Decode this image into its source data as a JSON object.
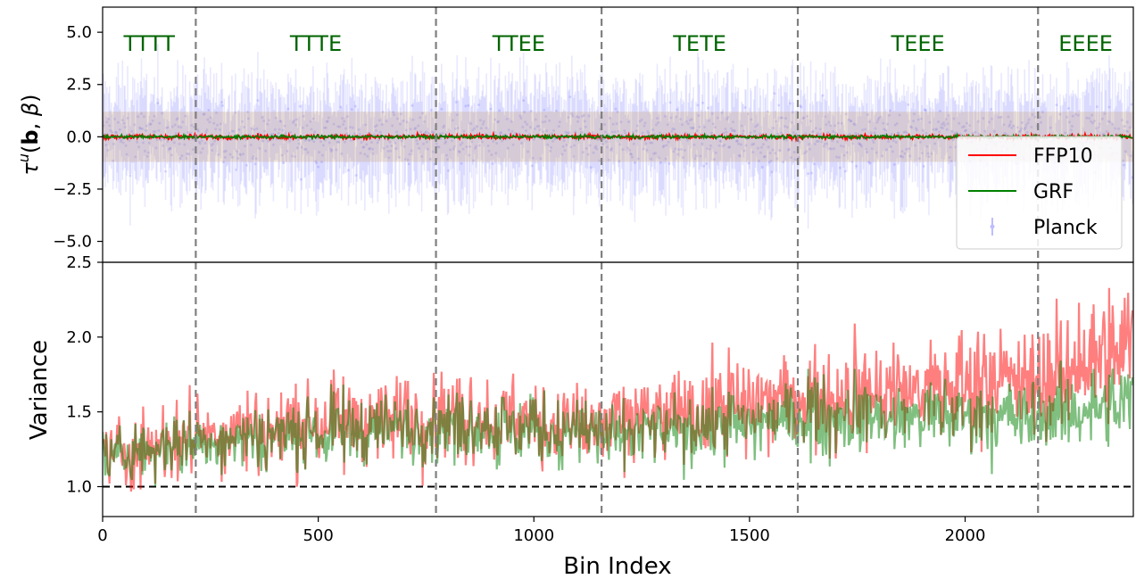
{
  "chart_data": [
    {
      "type": "line",
      "panel": "top",
      "ylabel": "τᵘ(b, β)",
      "xlim": [
        0,
        2390
      ],
      "ylim": [
        -6.0,
        6.2
      ],
      "yticks": [
        -5.0,
        -2.5,
        0.0,
        2.5,
        5.0
      ],
      "ytick_labels": [
        "−5.0",
        "−2.5",
        "0.0",
        "2.5",
        "5.0"
      ],
      "grid": false,
      "legend_position": "lower-right",
      "series": [
        {
          "name": "FFP10",
          "color": "#ff0000",
          "description": "mean near 0, band approx ±1.2"
        },
        {
          "name": "GRF",
          "color": "#008000",
          "description": "mean near 0"
        },
        {
          "name": "Planck",
          "color": "#0000ff",
          "marker": "point with error bars",
          "spread": 1.3
        }
      ],
      "band_color": "#c8a070",
      "band_halfwidth": 1.2,
      "regions": [
        {
          "label": "TTTT",
          "start": 0,
          "end": 216
        },
        {
          "label": "TTTE",
          "start": 216,
          "end": 773
        },
        {
          "label": "TTEE",
          "start": 773,
          "end": 1157
        },
        {
          "label": "TETE",
          "start": 1157,
          "end": 1612
        },
        {
          "label": "TEEE",
          "start": 1612,
          "end": 2169
        },
        {
          "label": "EEEE",
          "start": 2169,
          "end": 2390
        }
      ],
      "region_label_color": "#006400"
    },
    {
      "type": "line",
      "panel": "bottom",
      "xlabel": "Bin Index",
      "ylabel": "Variance",
      "xlim": [
        0,
        2390
      ],
      "ylim": [
        0.8,
        2.5
      ],
      "xticks": [
        0,
        500,
        1000,
        1500,
        2000
      ],
      "xtick_labels": [
        "0",
        "500",
        "1000",
        "1500",
        "2000"
      ],
      "yticks": [
        1.0,
        1.5,
        2.0,
        2.5
      ],
      "ytick_labels": [
        "1.0",
        "1.5",
        "2.0",
        "2.5"
      ],
      "reference_line": {
        "y": 1.0,
        "style": "dashed",
        "color": "#000000"
      },
      "grid": false,
      "series": [
        {
          "name": "FFP10",
          "color": "#ff0000",
          "trend_x": [
            0,
            216,
            773,
            1157,
            1612,
            2169,
            2390
          ],
          "trend_y": [
            1.22,
            1.34,
            1.48,
            1.4,
            1.58,
            1.72,
            1.95
          ],
          "noise": 0.16
        },
        {
          "name": "GRF",
          "color": "#008000",
          "trend_x": [
            0,
            216,
            773,
            1157,
            1612,
            2169,
            2390
          ],
          "trend_y": [
            1.2,
            1.3,
            1.42,
            1.35,
            1.45,
            1.48,
            1.55
          ],
          "noise": 0.13
        }
      ]
    }
  ],
  "legend": {
    "items": [
      {
        "label": "FFP10",
        "color": "#ff0000",
        "kind": "line"
      },
      {
        "label": "GRF",
        "color": "#008000",
        "kind": "line"
      },
      {
        "label": "Planck",
        "color": "#0000ff",
        "kind": "errorbar"
      }
    ]
  },
  "labels": {
    "top_ylabel_tau": "τ",
    "top_ylabel_sup": "u",
    "top_ylabel_open": "(",
    "top_ylabel_b": "b",
    "top_ylabel_sep": ", ",
    "top_ylabel_beta": "β",
    "top_ylabel_close": ")",
    "bottom_ylabel": "Variance",
    "xlabel": "Bin Index"
  }
}
